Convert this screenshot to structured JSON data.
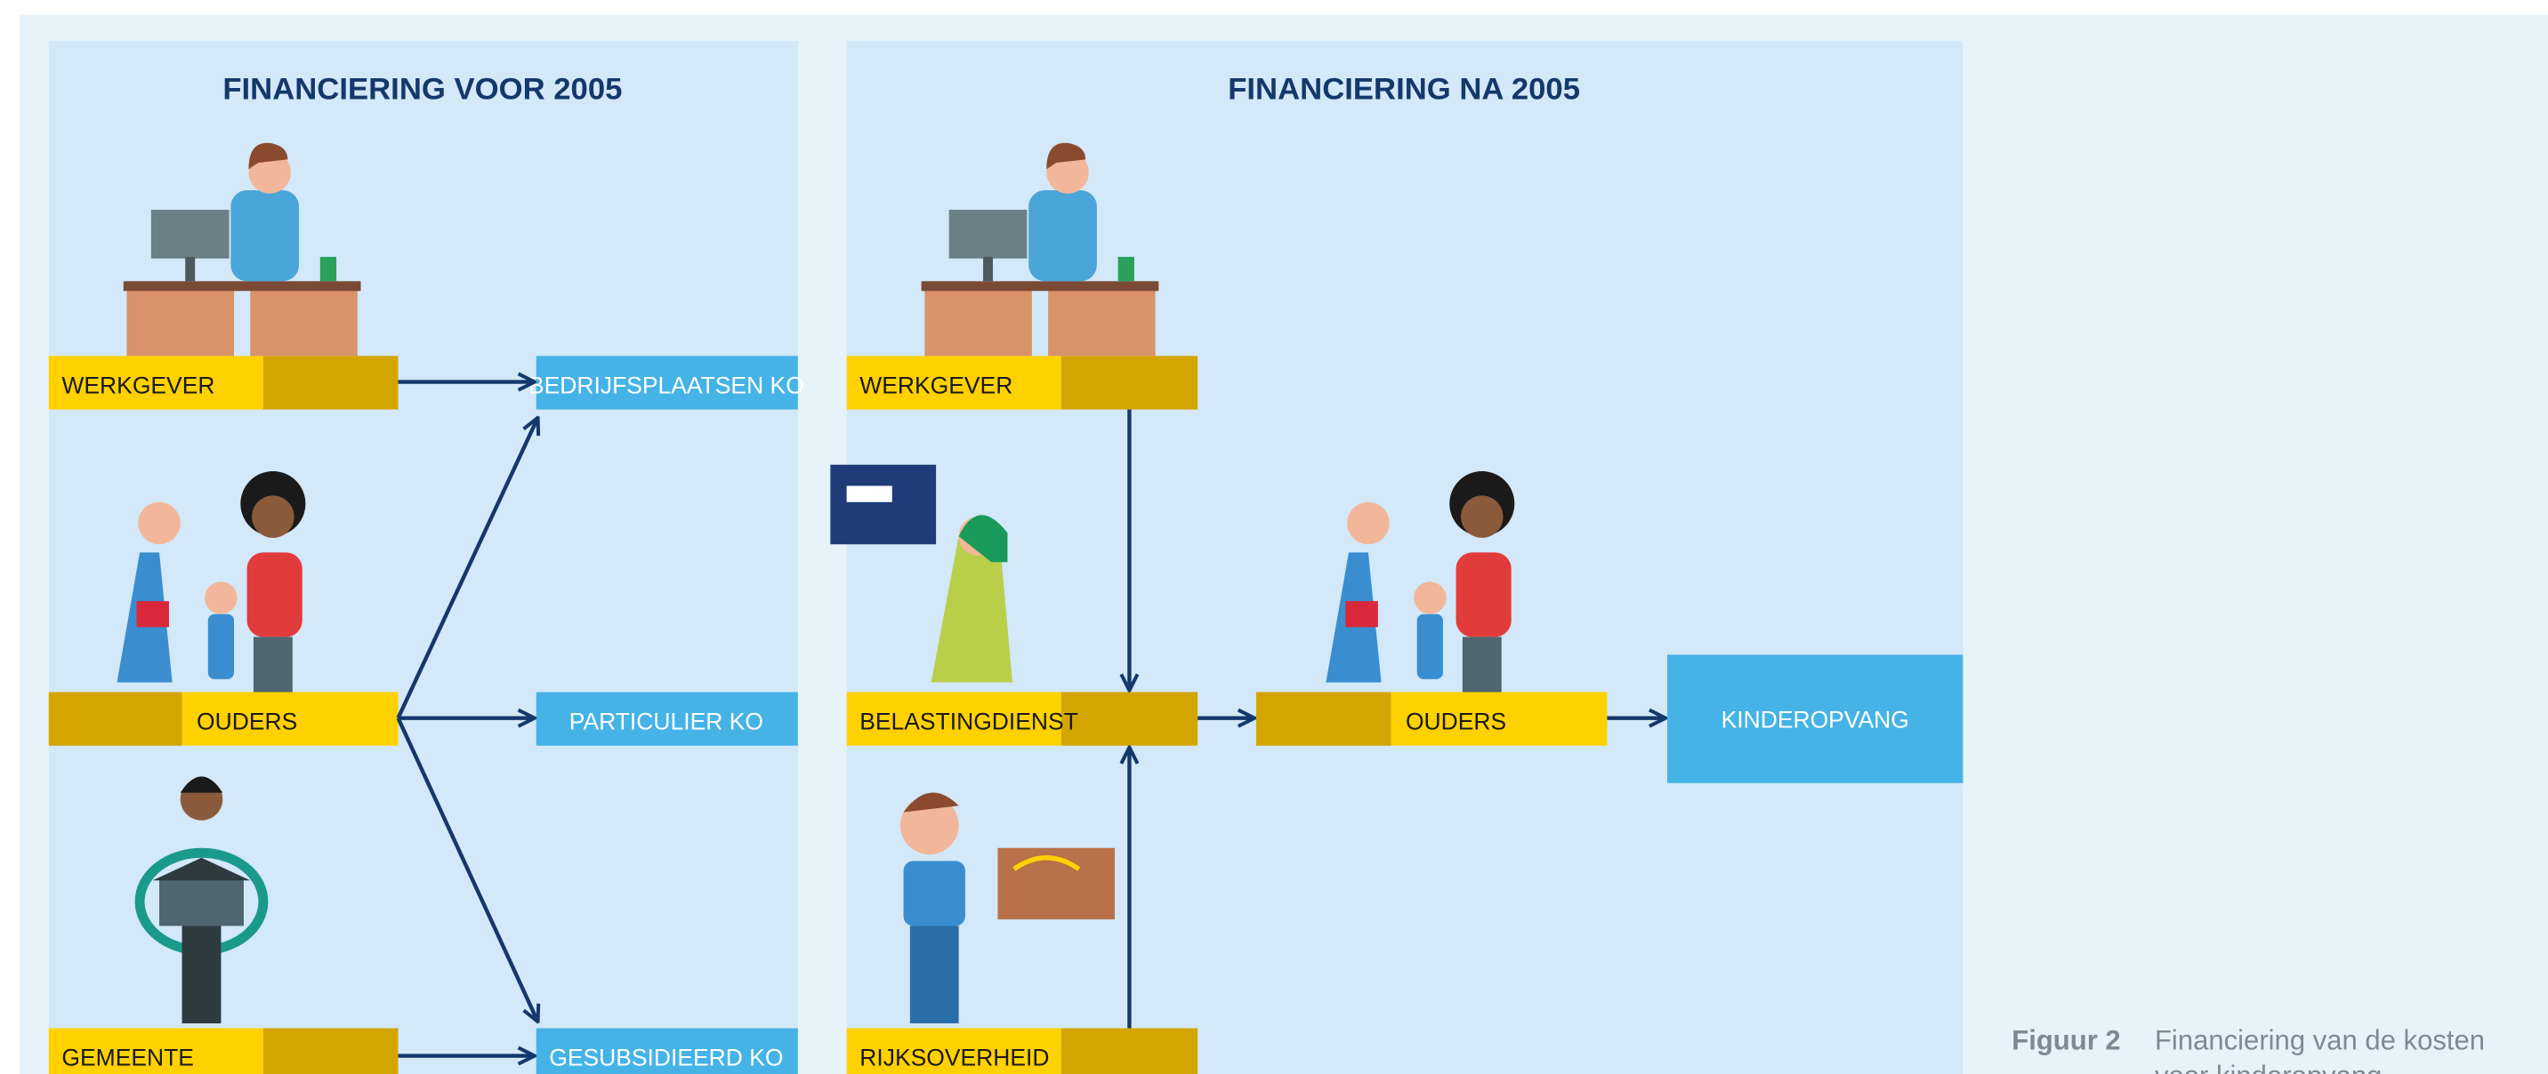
{
  "panels": [
    {
      "title": "FINANCIERING VOOR 2005",
      "nodes": [
        {
          "label": "WERKGEVER"
        },
        {
          "label": "OUDERS"
        },
        {
          "label": "GEMEENTE"
        },
        {
          "label": "BEDRIJFSPLAATSEN KO"
        },
        {
          "label": "PARTICULIER KO"
        },
        {
          "label": "GESUBSIDIEERD KO"
        }
      ]
    },
    {
      "title": "FINANCIERING NA 2005",
      "nodes": [
        {
          "label": "WERKGEVER"
        },
        {
          "label": "BELASTINGDIENST"
        },
        {
          "label": "RIJKSOVERHEID"
        },
        {
          "label": "OUDERS"
        },
        {
          "label": "KINDEROPVANG"
        }
      ]
    }
  ],
  "caption": {
    "label": "Figuur 2",
    "lines": [
      "Financiering van de kosten",
      "voor kinderopvang"
    ]
  }
}
